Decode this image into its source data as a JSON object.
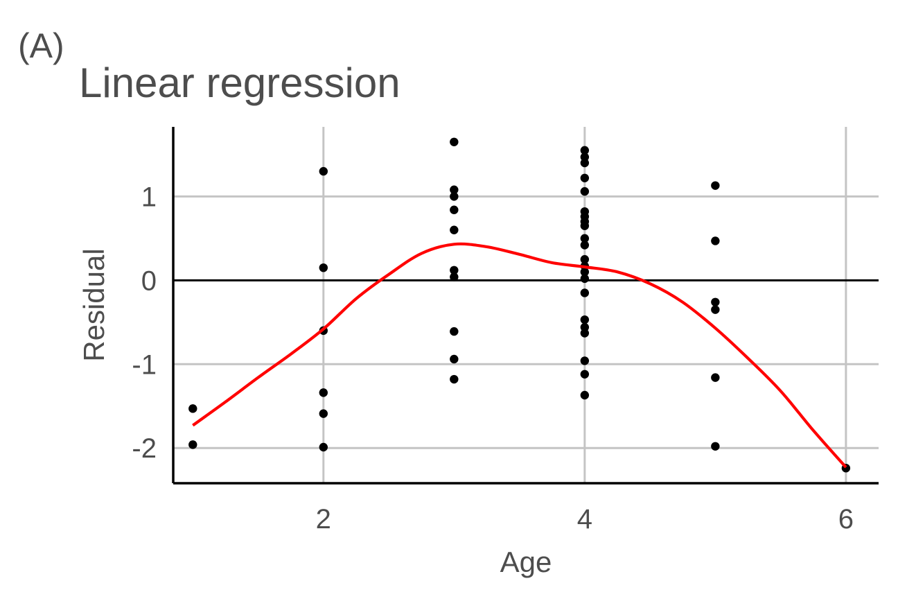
{
  "panel_tag": "(A)",
  "chart_data": {
    "type": "scatter",
    "title": "Linear regression",
    "xlabel": "Age",
    "ylabel": "Residual",
    "xlim": [
      0.85,
      6.25
    ],
    "ylim": [
      -2.42,
      1.83
    ],
    "xticks": [
      2,
      4,
      6
    ],
    "xtick_labels": [
      "2",
      "4",
      "6"
    ],
    "yticks": [
      -2,
      -1,
      0,
      1
    ],
    "ytick_labels": [
      "-2",
      "-1",
      "0",
      "1"
    ],
    "grid": true,
    "reference_line_y": 0,
    "point_color": "#000000",
    "smooth_color": "#ff0000",
    "points": [
      {
        "x": 1,
        "y": -1.53
      },
      {
        "x": 1,
        "y": -1.96
      },
      {
        "x": 2,
        "y": 1.3
      },
      {
        "x": 2,
        "y": 0.15
      },
      {
        "x": 2,
        "y": -0.6
      },
      {
        "x": 2,
        "y": -1.34
      },
      {
        "x": 2,
        "y": -1.59
      },
      {
        "x": 2,
        "y": -1.99
      },
      {
        "x": 3,
        "y": 1.65
      },
      {
        "x": 3,
        "y": 1.08
      },
      {
        "x": 3,
        "y": 1.0
      },
      {
        "x": 3,
        "y": 0.84
      },
      {
        "x": 3,
        "y": 0.6
      },
      {
        "x": 3,
        "y": 0.12
      },
      {
        "x": 3,
        "y": 0.04
      },
      {
        "x": 3,
        "y": -0.61
      },
      {
        "x": 3,
        "y": -0.94
      },
      {
        "x": 3,
        "y": -1.18
      },
      {
        "x": 4,
        "y": 1.55
      },
      {
        "x": 4,
        "y": 1.47
      },
      {
        "x": 4,
        "y": 1.4
      },
      {
        "x": 4,
        "y": 1.22
      },
      {
        "x": 4,
        "y": 1.06
      },
      {
        "x": 4,
        "y": 0.82
      },
      {
        "x": 4,
        "y": 0.76
      },
      {
        "x": 4,
        "y": 0.7
      },
      {
        "x": 4,
        "y": 0.65
      },
      {
        "x": 4,
        "y": 0.5
      },
      {
        "x": 4,
        "y": 0.42
      },
      {
        "x": 4,
        "y": 0.25
      },
      {
        "x": 4,
        "y": 0.17
      },
      {
        "x": 4,
        "y": 0.1
      },
      {
        "x": 4,
        "y": 0.02
      },
      {
        "x": 4,
        "y": -0.15
      },
      {
        "x": 4,
        "y": -0.47
      },
      {
        "x": 4,
        "y": -0.56
      },
      {
        "x": 4,
        "y": -0.63
      },
      {
        "x": 4,
        "y": -0.96
      },
      {
        "x": 4,
        "y": -1.12
      },
      {
        "x": 4,
        "y": -1.37
      },
      {
        "x": 5,
        "y": 1.13
      },
      {
        "x": 5,
        "y": 0.47
      },
      {
        "x": 5,
        "y": -0.26
      },
      {
        "x": 5,
        "y": -0.35
      },
      {
        "x": 5,
        "y": -1.16
      },
      {
        "x": 5,
        "y": -1.98
      },
      {
        "x": 6,
        "y": -2.24
      }
    ],
    "smooth_curve": [
      {
        "x": 1.0,
        "y": -1.73
      },
      {
        "x": 1.25,
        "y": -1.45
      },
      {
        "x": 1.5,
        "y": -1.16
      },
      {
        "x": 1.75,
        "y": -0.88
      },
      {
        "x": 2.0,
        "y": -0.58
      },
      {
        "x": 2.25,
        "y": -0.22
      },
      {
        "x": 2.5,
        "y": 0.07
      },
      {
        "x": 2.75,
        "y": 0.32
      },
      {
        "x": 3.0,
        "y": 0.43
      },
      {
        "x": 3.25,
        "y": 0.4
      },
      {
        "x": 3.5,
        "y": 0.31
      },
      {
        "x": 3.75,
        "y": 0.21
      },
      {
        "x": 4.0,
        "y": 0.16
      },
      {
        "x": 4.25,
        "y": 0.1
      },
      {
        "x": 4.5,
        "y": -0.04
      },
      {
        "x": 4.75,
        "y": -0.26
      },
      {
        "x": 5.0,
        "y": -0.57
      },
      {
        "x": 5.25,
        "y": -0.93
      },
      {
        "x": 5.5,
        "y": -1.32
      },
      {
        "x": 5.75,
        "y": -1.79
      },
      {
        "x": 6.0,
        "y": -2.23
      }
    ]
  }
}
